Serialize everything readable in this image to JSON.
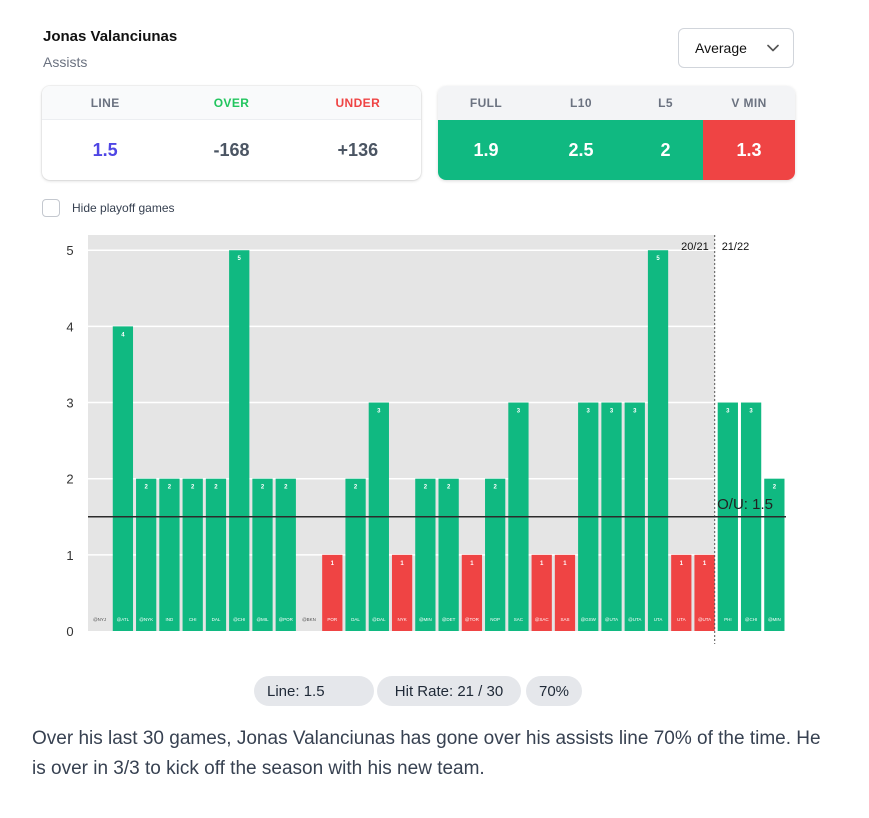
{
  "header": {
    "player": "Jonas Valanciunas",
    "stat": "Assists",
    "dropdown_value": "Average"
  },
  "line_card": {
    "headers": [
      "LINE",
      "OVER",
      "UNDER"
    ],
    "values": [
      "1.5",
      "-168",
      "+136"
    ]
  },
  "avg_card": {
    "headers": [
      "FULL",
      "L10",
      "L5",
      "V MIN"
    ],
    "values": [
      "1.9",
      "2.5",
      "2",
      "1.3"
    ]
  },
  "toggle": {
    "label": "Hide playoff games"
  },
  "chart_data": {
    "type": "bar",
    "categories": [
      "@NYJ",
      "@ATL",
      "@NYK",
      "IND",
      "CHI",
      "DAL",
      "@CHI",
      "@MIL",
      "@POR",
      "@BKN",
      "POR",
      "DAL",
      "@DAL",
      "NYK",
      "@MIN",
      "@DET",
      "@TOR",
      "NOP",
      "SAC",
      "@SAC",
      "SAS",
      "@GSW",
      "@UTA",
      "@UTA",
      "UTA",
      "UTA",
      "@UTA",
      "PHI",
      "@CHI",
      "@MIN"
    ],
    "values": [
      0,
      4,
      2,
      2,
      2,
      2,
      5,
      2,
      2,
      0,
      1,
      2,
      3,
      1,
      2,
      2,
      1,
      2,
      3,
      1,
      1,
      3,
      3,
      3,
      5,
      1,
      1,
      3,
      3,
      2
    ],
    "line": 1.5,
    "line_label": "O/U: 1.5",
    "ylim": [
      0,
      5.2
    ],
    "yticks": [
      "0",
      "1",
      "2",
      "3",
      "4",
      "5"
    ],
    "season_split_index": 27,
    "season_labels": [
      "20/21",
      "21/22"
    ],
    "colors": {
      "over": "#10b981",
      "under": "#ef4444",
      "past_bg": "#e5e5e5"
    }
  },
  "pills": {
    "line": "Line: 1.5",
    "hit_rate": "Hit Rate: 21 / 30",
    "percent": "70%"
  },
  "summary": "Over his last 30 games, Jonas Valanciunas has gone over his assists line 70% of the time. He is over in 3/3 to kick off the season with his new team."
}
